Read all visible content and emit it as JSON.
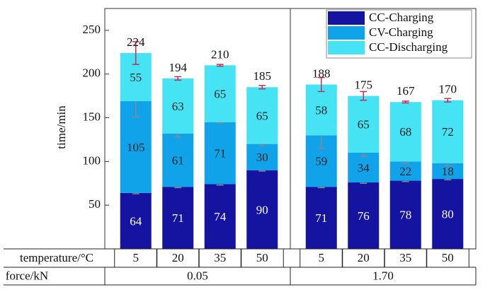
{
  "chart_data": {
    "type": "stacked_bar",
    "y_label": "time/min",
    "row_labels": [
      "temperature/°C",
      "force/kN"
    ],
    "categories": [
      "5",
      "20",
      "35",
      "50",
      "5",
      "20",
      "35",
      "50"
    ],
    "group_labels": [
      "0.05",
      "1.70"
    ],
    "series": [
      {
        "name": "CC-Charging",
        "color": "#1414a0",
        "label_color": "#ffffff",
        "error_color": "#888888",
        "values": [
          64,
          71,
          74,
          90,
          71,
          76,
          78,
          80
        ],
        "errors": [
          1,
          1,
          1,
          1,
          1,
          1,
          1,
          1
        ]
      },
      {
        "name": "CV-Charging",
        "color": "#11a3ea",
        "label_color": "#222222",
        "error_color": "#888888",
        "values": [
          105,
          61,
          71,
          30,
          59,
          34,
          22,
          18
        ],
        "errors": [
          18,
          4,
          1,
          2,
          15,
          4,
          2,
          3
        ]
      },
      {
        "name": "CC-Discharging",
        "color": "#45e3f3",
        "label_color": "#222222",
        "error_color": "#c0305a",
        "values": [
          55,
          63,
          65,
          65,
          58,
          65,
          68,
          72
        ],
        "errors": [
          13,
          2,
          1,
          2,
          8,
          5,
          1,
          2
        ]
      }
    ],
    "totals": [
      224,
      194,
      210,
      185,
      188,
      175,
      167,
      170
    ],
    "ylim": [
      0,
      275
    ],
    "yticks": [
      50,
      100,
      150,
      200,
      250
    ],
    "legend": "upper right"
  }
}
